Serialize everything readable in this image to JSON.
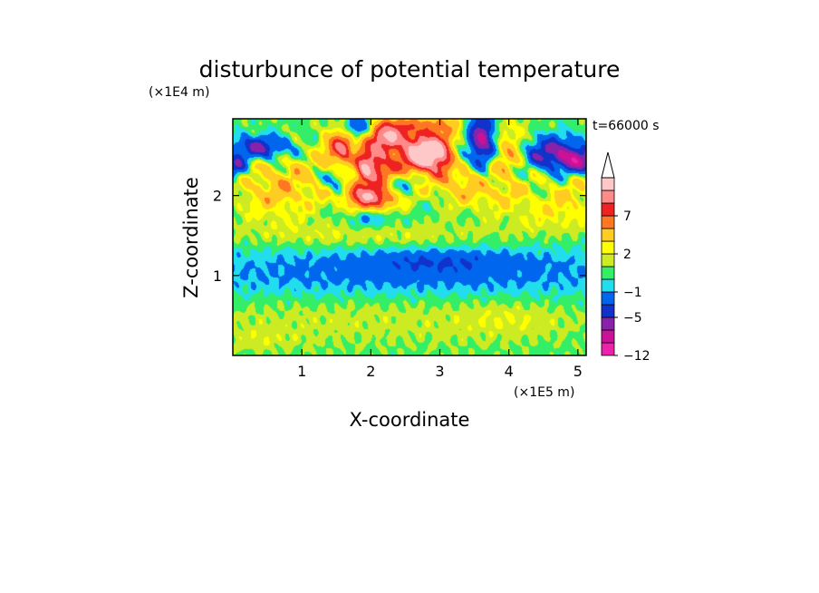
{
  "chart_data": {
    "type": "heatmap",
    "title": "disturbunce of potential temperature",
    "time_label": "t=66000 s",
    "xlabel": "X-coordinate",
    "ylabel": "Z-coordinate",
    "x_unit": "(×1E5 m)",
    "y_unit": "(×1E4 m)",
    "xlim": [
      0,
      5.12
    ],
    "ylim": [
      0,
      2.96
    ],
    "x_ticks": [
      1,
      2,
      3,
      4,
      5
    ],
    "x_tick_labels": [
      "1",
      "2",
      "3",
      "4",
      "5"
    ],
    "y_ticks": [
      1,
      2
    ],
    "y_tick_labels": [
      "1",
      "2"
    ],
    "colorbar": {
      "levels": [
        -12,
        -9,
        -7,
        -5,
        -3,
        -1,
        0,
        1,
        2,
        3,
        5,
        7,
        9,
        11
      ],
      "colors": [
        "#ee22aa",
        "#cc1199",
        "#8822aa",
        "#1133cc",
        "#0066ee",
        "#22ddee",
        "#33ee66",
        "#cceb22",
        "#ffff00",
        "#ffcc22",
        "#ff7722",
        "#ee2222",
        "#ff8a8a",
        "#ffc8c8"
      ],
      "labels": [
        {
          "value": -12,
          "text": "−12"
        },
        {
          "value": -5,
          "text": "−5"
        },
        {
          "value": -1,
          "text": "−1"
        },
        {
          "value": 2,
          "text": "2"
        },
        {
          "value": 7,
          "text": "7"
        }
      ],
      "extend": "max"
    },
    "field_features": [
      {
        "x": 0.4,
        "z": 2.6,
        "sx": 0.3,
        "sz": 0.1,
        "amp": -6
      },
      {
        "x": 0.05,
        "z": 2.35,
        "sx": 0.1,
        "sz": 0.1,
        "amp": -5
      },
      {
        "x": 0.5,
        "z": 2.05,
        "sx": 0.35,
        "sz": 0.25,
        "amp": 2.5
      },
      {
        "x": 1.0,
        "z": 2.2,
        "sx": 0.4,
        "sz": 0.3,
        "amp": 2
      },
      {
        "x": 1.6,
        "z": 2.6,
        "sx": 0.18,
        "sz": 0.15,
        "amp": 8
      },
      {
        "x": 1.95,
        "z": 2.35,
        "sx": 0.22,
        "sz": 0.18,
        "amp": 9
      },
      {
        "x": 2.2,
        "z": 2.75,
        "sx": 0.2,
        "sz": 0.12,
        "amp": 9
      },
      {
        "x": 1.8,
        "z": 2.05,
        "sx": 0.25,
        "sz": 0.12,
        "amp": 7
      },
      {
        "x": 2.1,
        "z": 1.95,
        "sx": 0.2,
        "sz": 0.1,
        "amp": 6
      },
      {
        "x": 1.55,
        "z": 2.15,
        "sx": 0.15,
        "sz": 0.12,
        "amp": -6
      },
      {
        "x": 1.85,
        "z": 2.85,
        "sx": 0.15,
        "sz": 0.1,
        "amp": -6
      },
      {
        "x": 1.75,
        "z": 2.45,
        "sx": 0.08,
        "sz": 0.2,
        "amp": -5
      },
      {
        "x": 2.15,
        "z": 2.1,
        "sx": 0.2,
        "sz": 0.08,
        "amp": -3
      },
      {
        "x": 2.5,
        "z": 2.2,
        "sx": 0.15,
        "sz": 0.08,
        "amp": -3
      },
      {
        "x": 2.0,
        "z": 1.7,
        "sx": 0.25,
        "sz": 0.08,
        "amp": -2
      },
      {
        "x": 2.8,
        "z": 2.6,
        "sx": 0.35,
        "sz": 0.2,
        "amp": 7
      },
      {
        "x": 2.85,
        "z": 2.5,
        "sx": 0.22,
        "sz": 0.14,
        "amp": 8
      },
      {
        "x": 2.75,
        "z": 2.9,
        "sx": 0.6,
        "sz": 0.08,
        "amp": 3
      },
      {
        "x": 2.4,
        "z": 2.3,
        "sx": 0.3,
        "sz": 0.2,
        "amp": 2.5
      },
      {
        "x": 3.3,
        "z": 2.2,
        "sx": 0.25,
        "sz": 0.2,
        "amp": 4
      },
      {
        "x": 3.6,
        "z": 2.7,
        "sx": 0.15,
        "sz": 0.25,
        "amp": -9
      },
      {
        "x": 3.25,
        "z": 2.45,
        "sx": 0.1,
        "sz": 0.15,
        "amp": -4
      },
      {
        "x": 3.95,
        "z": 2.5,
        "sx": 0.2,
        "sz": 0.25,
        "amp": 3.5
      },
      {
        "x": 3.85,
        "z": 2.0,
        "sx": 0.3,
        "sz": 0.12,
        "amp": 2
      },
      {
        "x": 4.2,
        "z": 2.6,
        "sx": 0.25,
        "sz": 0.2,
        "amp": 2
      },
      {
        "x": 4.5,
        "z": 2.55,
        "sx": 0.3,
        "sz": 0.15,
        "amp": -6
      },
      {
        "x": 5.0,
        "z": 2.45,
        "sx": 0.25,
        "sz": 0.12,
        "amp": -7
      },
      {
        "x": 4.9,
        "z": 2.05,
        "sx": 0.35,
        "sz": 0.2,
        "amp": 2
      },
      {
        "x": 4.6,
        "z": 1.75,
        "sx": 0.6,
        "sz": 0.15,
        "amp": 1.5
      },
      {
        "x": 2.0,
        "z": 1.5,
        "sx": 1.5,
        "sz": 0.12,
        "amp": 1.5
      },
      {
        "x": 2.5,
        "z": 1.0,
        "sx": 3.0,
        "sz": 0.25,
        "amp": -2.5
      },
      {
        "x": 3.0,
        "z": 1.18,
        "sx": 0.8,
        "sz": 0.1,
        "amp": -2
      },
      {
        "x": 2.2,
        "z": 0.55,
        "sx": 2.5,
        "sz": 0.3,
        "amp": 1.2
      },
      {
        "x": 4.0,
        "z": 0.45,
        "sx": 0.5,
        "sz": 0.15,
        "amp": 0.8
      },
      {
        "x": 0.4,
        "z": 0.2,
        "sx": 0.4,
        "sz": 0.1,
        "amp": 0.8
      }
    ]
  }
}
